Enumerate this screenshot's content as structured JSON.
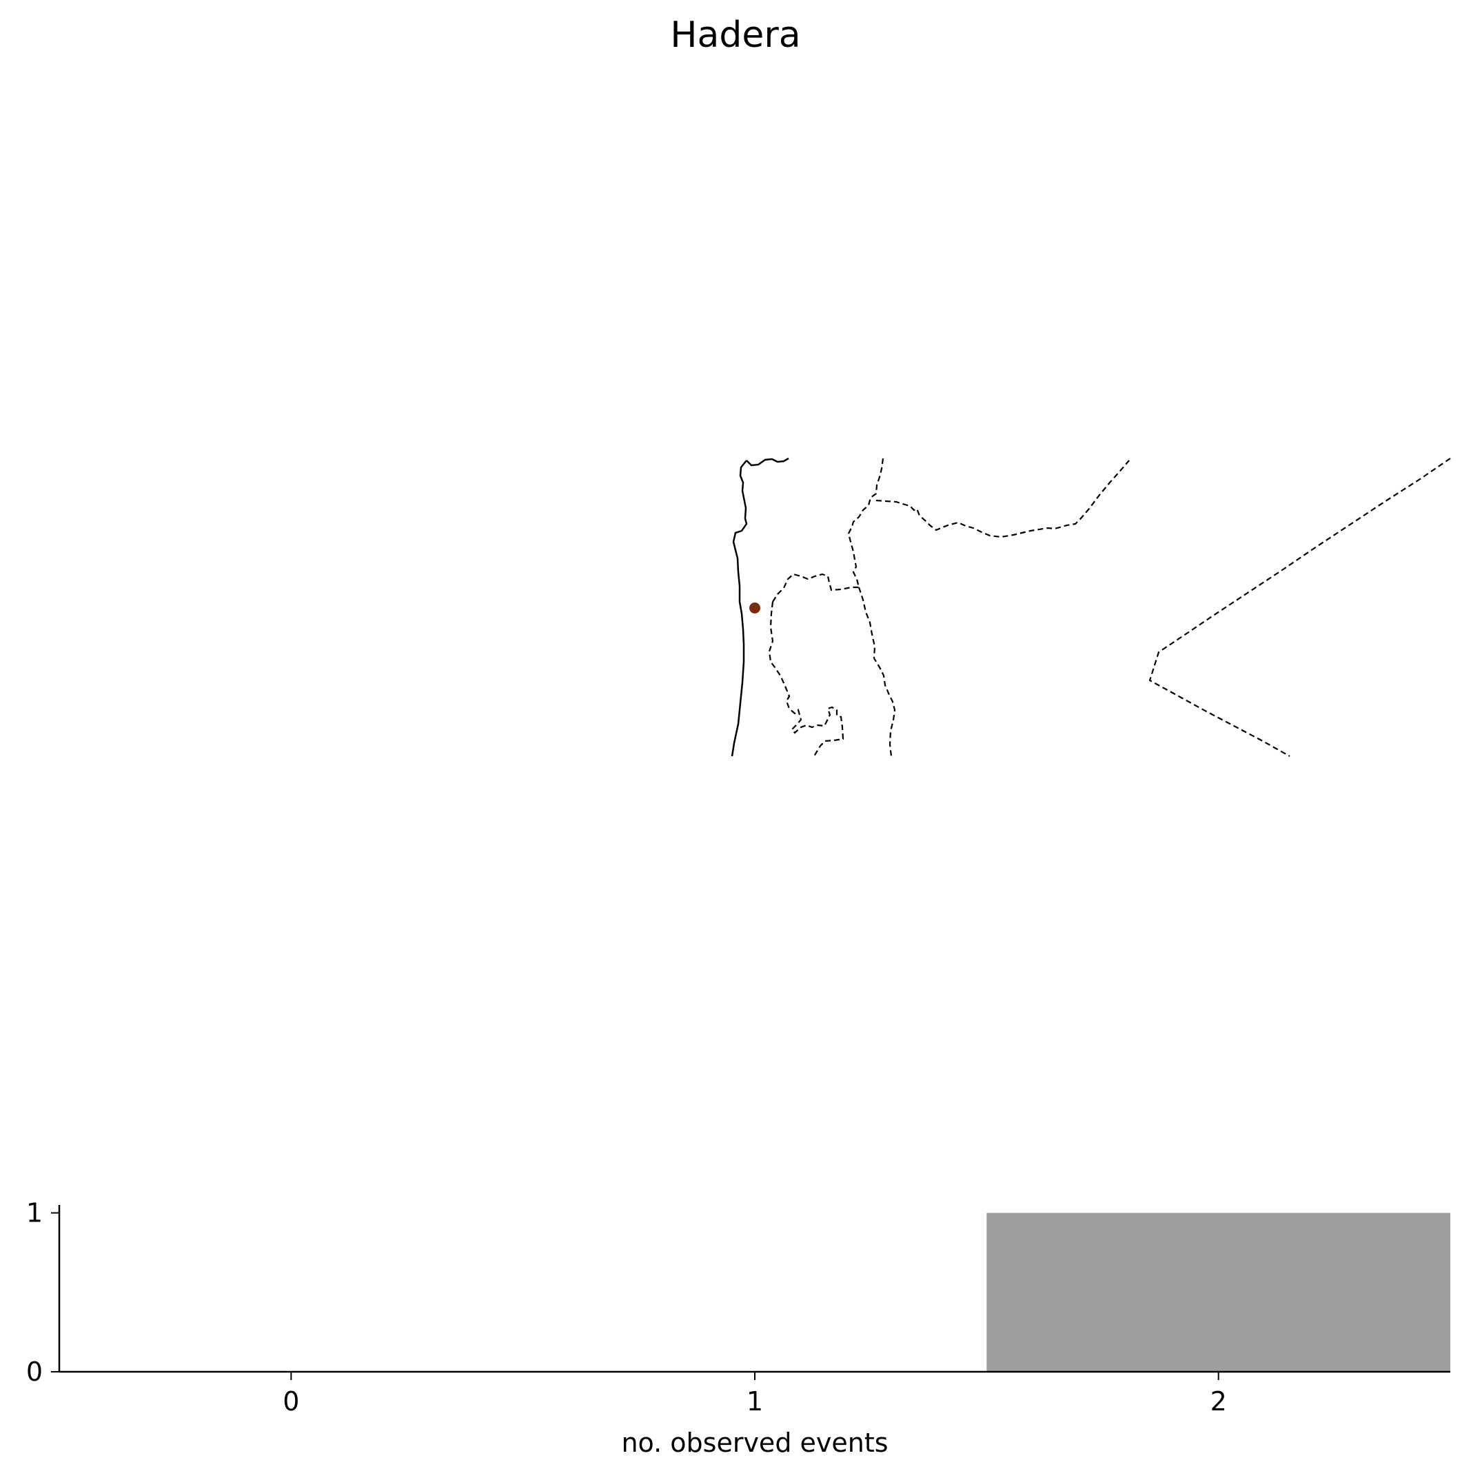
{
  "title": "Hadera",
  "map": {
    "marker_label": "Hadera",
    "marker_color": "#7a2c10",
    "coastline_style": "solid",
    "border_style": "dashed"
  },
  "chart_data": {
    "type": "bar",
    "title": "Hadera",
    "categories": [
      "0",
      "1",
      "2"
    ],
    "x": [
      0,
      1,
      2
    ],
    "values": [
      0,
      0,
      1
    ],
    "xlabel": "no. observed events",
    "ylabel": "",
    "xlim": [
      -0.5,
      2.5
    ],
    "ylim": [
      0,
      1.05
    ],
    "yticks": [
      0,
      1
    ],
    "bar_color": "#9e9e9e",
    "grid": false
  }
}
